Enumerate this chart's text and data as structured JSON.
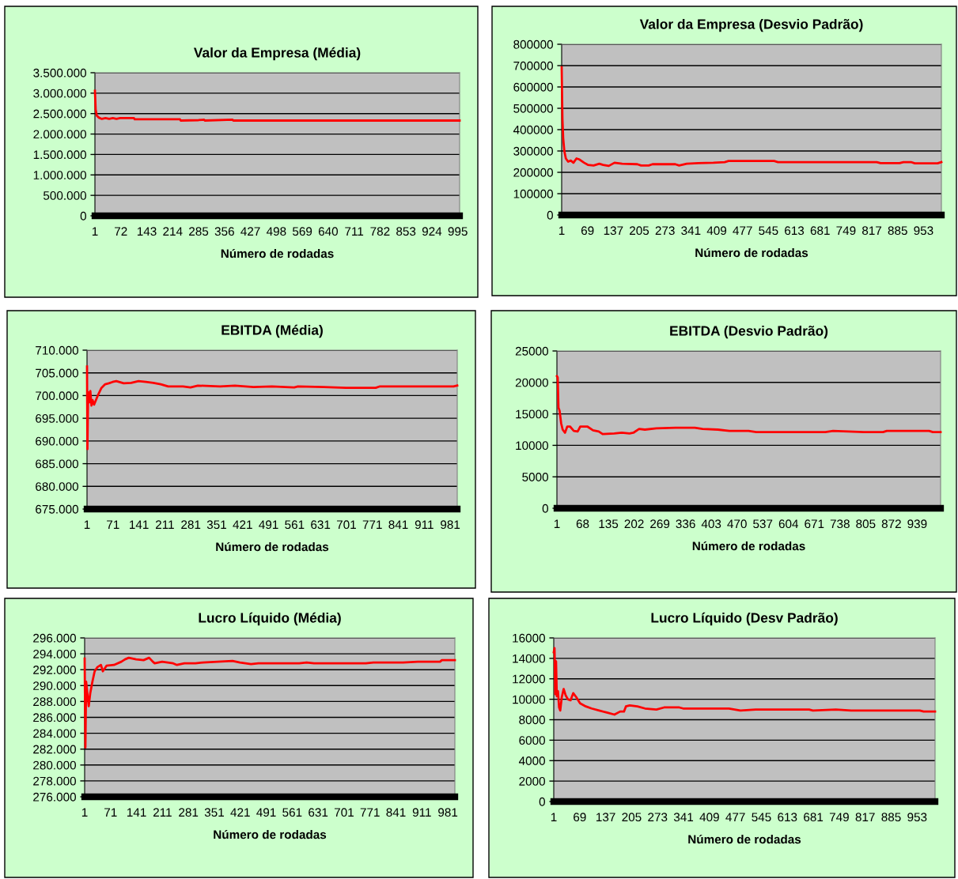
{
  "chart_data": [
    {
      "type": "line",
      "title": "Valor da Empresa (Média)",
      "xlabel": "Número de rodadas",
      "xlim": [
        1,
        1000
      ],
      "xticks": [
        1,
        72,
        143,
        214,
        285,
        356,
        427,
        498,
        569,
        640,
        711,
        782,
        853,
        924,
        995
      ],
      "ylim": [
        0,
        3500000
      ],
      "yticks": [
        {
          "value": 0,
          "label": "0"
        },
        {
          "value": 500000,
          "label": "500.000"
        },
        {
          "value": 1000000,
          "label": "1.000.000"
        },
        {
          "value": 1500000,
          "label": "1.500.000"
        },
        {
          "value": 2000000,
          "label": "2.000.000"
        },
        {
          "value": 2500000,
          "label": "2.500.000"
        },
        {
          "value": 3000000,
          "label": "3.000.000"
        },
        {
          "value": 3500000,
          "label": "3.500.000"
        }
      ],
      "grid": "y",
      "legend": false,
      "series": [
        {
          "color": "#ff0000",
          "x": [
            1,
            3,
            6,
            12,
            20,
            30,
            40,
            50,
            60,
            70,
            108,
            110,
            234,
            236,
            285,
            300,
            302,
            378,
            380,
            1000
          ],
          "values": [
            3060000,
            2600000,
            2450000,
            2400000,
            2370000,
            2390000,
            2370000,
            2390000,
            2370000,
            2390000,
            2390000,
            2360000,
            2360000,
            2330000,
            2340000,
            2350000,
            2330000,
            2350000,
            2330000,
            2330000
          ]
        }
      ]
    },
    {
      "type": "line",
      "title": "Valor da Empresa (Desvio Padrão)",
      "xlabel": "Número de rodadas",
      "xlim": [
        1,
        1000
      ],
      "xticks": [
        1,
        69,
        137,
        205,
        273,
        341,
        409,
        477,
        545,
        613,
        681,
        749,
        817,
        885,
        953
      ],
      "ylim": [
        0,
        800000
      ],
      "yticks": [
        0,
        100000,
        200000,
        300000,
        400000,
        500000,
        600000,
        700000,
        800000
      ],
      "grid": "y",
      "legend": false,
      "series": [
        {
          "color": "#ff0000",
          "x": [
            1,
            3,
            5,
            8,
            12,
            18,
            25,
            32,
            40,
            48,
            60,
            70,
            85,
            100,
            110,
            125,
            140,
            160,
            200,
            210,
            230,
            240,
            300,
            310,
            330,
            360,
            400,
            430,
            440,
            560,
            570,
            830,
            840,
            890,
            900,
            920,
            930,
            990,
            1000
          ],
          "values": [
            692000,
            450000,
            360000,
            300000,
            265000,
            250000,
            255000,
            245000,
            265000,
            260000,
            245000,
            235000,
            232000,
            240000,
            235000,
            230000,
            245000,
            240000,
            238000,
            232000,
            232000,
            238000,
            238000,
            232000,
            240000,
            243000,
            245000,
            248000,
            253000,
            253000,
            248000,
            248000,
            243000,
            243000,
            248000,
            248000,
            242000,
            242000,
            248000
          ]
        }
      ]
    },
    {
      "type": "line",
      "title": "EBITDA (Média)",
      "xlabel": "Número de rodadas",
      "xlim": [
        1,
        1000
      ],
      "xticks": [
        1,
        71,
        141,
        211,
        281,
        351,
        421,
        491,
        561,
        631,
        701,
        771,
        841,
        911,
        981
      ],
      "ylim": [
        675000,
        710000
      ],
      "yticks": [
        {
          "value": 675000,
          "label": "675.000"
        },
        {
          "value": 680000,
          "label": "680.000"
        },
        {
          "value": 685000,
          "label": "685.000"
        },
        {
          "value": 690000,
          "label": "690.000"
        },
        {
          "value": 695000,
          "label": "695.000"
        },
        {
          "value": 700000,
          "label": "700.000"
        },
        {
          "value": 705000,
          "label": "705.000"
        },
        {
          "value": 710000,
          "label": "710.000"
        }
      ],
      "grid": "y",
      "legend": false,
      "series": [
        {
          "color": "#ff0000",
          "x": [
            1,
            2,
            4,
            7,
            10,
            13,
            16,
            20,
            25,
            30,
            40,
            50,
            60,
            70,
            80,
            100,
            120,
            140,
            160,
            180,
            200,
            220,
            260,
            280,
            300,
            360,
            400,
            450,
            500,
            560,
            570,
            640,
            700,
            780,
            790,
            990,
            1000
          ],
          "values": [
            706400,
            688200,
            700800,
            698500,
            701000,
            697800,
            699000,
            698000,
            699000,
            700000,
            701700,
            702500,
            702700,
            703000,
            703200,
            702700,
            702800,
            703200,
            703000,
            702800,
            702500,
            702000,
            702000,
            701800,
            702200,
            702000,
            702200,
            701900,
            702000,
            701800,
            702000,
            701900,
            701700,
            701700,
            702000,
            702000,
            702200
          ]
        }
      ]
    },
    {
      "type": "line",
      "title": "EBITDA (Desvio Padrão)",
      "xlabel": "Número de rodadas",
      "xlim": [
        1,
        1000
      ],
      "xticks": [
        1,
        68,
        135,
        202,
        269,
        336,
        403,
        470,
        537,
        604,
        671,
        738,
        805,
        872,
        939
      ],
      "ylim": [
        0,
        25000
      ],
      "yticks": [
        0,
        5000,
        10000,
        15000,
        20000,
        25000
      ],
      "grid": "y",
      "legend": false,
      "series": [
        {
          "color": "#ff0000",
          "x": [
            1,
            3,
            5,
            8,
            12,
            16,
            22,
            28,
            35,
            45,
            55,
            62,
            80,
            95,
            110,
            120,
            150,
            170,
            190,
            200,
            215,
            230,
            260,
            310,
            360,
            380,
            420,
            450,
            500,
            520,
            700,
            720,
            760,
            800,
            850,
            860,
            970,
            980,
            1000
          ],
          "values": [
            21000,
            20800,
            16000,
            15500,
            13500,
            12500,
            12000,
            13000,
            13000,
            12300,
            12200,
            13000,
            13000,
            12400,
            12200,
            11800,
            11900,
            12000,
            11900,
            12000,
            12600,
            12500,
            12700,
            12800,
            12800,
            12600,
            12500,
            12300,
            12300,
            12100,
            12100,
            12300,
            12200,
            12100,
            12100,
            12300,
            12300,
            12100,
            12100
          ]
        }
      ]
    },
    {
      "type": "line",
      "title": "Lucro Líquido (Média)",
      "xlabel": "Número de rodadas",
      "xlim": [
        1,
        1000
      ],
      "xticks": [
        1,
        71,
        141,
        211,
        281,
        351,
        421,
        491,
        561,
        631,
        701,
        771,
        841,
        911,
        981
      ],
      "ylim": [
        276000,
        296000
      ],
      "yticks": [
        {
          "value": 276000,
          "label": "276.000"
        },
        {
          "value": 278000,
          "label": "278.000"
        },
        {
          "value": 280000,
          "label": "280.000"
        },
        {
          "value": 282000,
          "label": "282.000"
        },
        {
          "value": 284000,
          "label": "284.000"
        },
        {
          "value": 286000,
          "label": "286.000"
        },
        {
          "value": 288000,
          "label": "288.000"
        },
        {
          "value": 290000,
          "label": "290.000"
        },
        {
          "value": 292000,
          "label": "292.000"
        },
        {
          "value": 294000,
          "label": "294.000"
        },
        {
          "value": 296000,
          "label": "296.000"
        }
      ],
      "grid": "y",
      "legend": false,
      "series": [
        {
          "color": "#ff0000",
          "x": [
            1,
            3,
            5,
            12,
            16,
            22,
            28,
            35,
            45,
            50,
            60,
            80,
            100,
            110,
            120,
            140,
            160,
            175,
            185,
            190,
            210,
            240,
            250,
            270,
            300,
            320,
            360,
            400,
            420,
            450,
            470,
            580,
            600,
            620,
            760,
            780,
            860,
            900,
            960,
            965,
            1000
          ],
          "values": [
            293400,
            282200,
            290500,
            287400,
            289000,
            290500,
            291800,
            292300,
            292600,
            291800,
            292500,
            292600,
            293000,
            293300,
            293500,
            293300,
            293200,
            293500,
            293000,
            292800,
            293000,
            292800,
            292600,
            292800,
            292800,
            292900,
            293000,
            293100,
            292900,
            292700,
            292800,
            292800,
            292900,
            292800,
            292800,
            292900,
            292900,
            293000,
            293000,
            293200,
            293200
          ]
        }
      ]
    },
    {
      "type": "line",
      "title": "Lucro Líquido (Desv Padrão)",
      "xlabel": "Número de rodadas",
      "xlim": [
        1,
        1000
      ],
      "xticks": [
        1,
        69,
        137,
        205,
        273,
        341,
        409,
        477,
        545,
        613,
        681,
        749,
        817,
        885,
        953
      ],
      "ylim": [
        0,
        16000
      ],
      "yticks": [
        0,
        2000,
        4000,
        6000,
        8000,
        10000,
        12000,
        14000,
        16000
      ],
      "grid": "y",
      "legend": false,
      "series": [
        {
          "color": "#ff0000",
          "x": [
            1,
            3,
            5,
            7,
            9,
            12,
            15,
            18,
            22,
            27,
            32,
            38,
            45,
            52,
            60,
            70,
            85,
            100,
            120,
            140,
            160,
            175,
            185,
            190,
            200,
            220,
            240,
            270,
            290,
            330,
            340,
            460,
            490,
            530,
            560,
            670,
            680,
            740,
            780,
            960,
            970,
            1000
          ],
          "values": [
            14600,
            15000,
            10500,
            13700,
            10300,
            10800,
            9200,
            8900,
            10200,
            11000,
            10400,
            10000,
            9900,
            10600,
            10200,
            9600,
            9300,
            9100,
            8900,
            8700,
            8500,
            8800,
            8800,
            9300,
            9400,
            9300,
            9100,
            9000,
            9200,
            9200,
            9100,
            9100,
            8900,
            9000,
            9000,
            9000,
            8900,
            9000,
            8900,
            8900,
            8800,
            8800
          ]
        }
      ]
    }
  ]
}
